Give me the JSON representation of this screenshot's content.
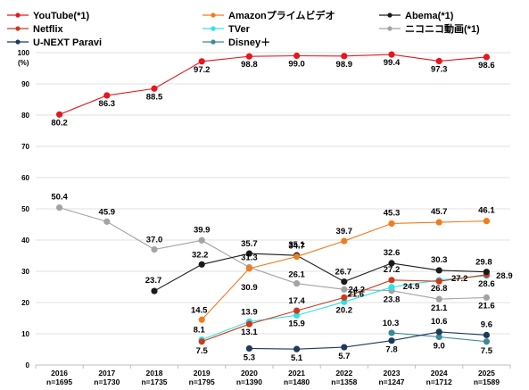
{
  "chart_data": {
    "type": "line",
    "title": "",
    "xlabel": "",
    "ylabel": "(%)",
    "ylim": [
      0,
      100
    ],
    "yticks": [
      0,
      10,
      20,
      30,
      40,
      50,
      60,
      70,
      80,
      90,
      100
    ],
    "grid": "horizontal",
    "legend_position": "top",
    "categories": [
      "2016",
      "2017",
      "2018",
      "2019",
      "2020",
      "2021",
      "2022",
      "2023",
      "2024",
      "2025"
    ],
    "sample_sizes": [
      "n=1695",
      "n=1730",
      "n=1735",
      "n=1795",
      "n=1390",
      "n=1480",
      "n=1358",
      "n=1247",
      "n=1712",
      "n=1589"
    ],
    "series": [
      {
        "name": "YouTube(*1)",
        "color": "#e8161d",
        "values": [
          80.2,
          86.3,
          88.5,
          97.2,
          98.8,
          99.0,
          98.9,
          99.4,
          97.3,
          98.6
        ]
      },
      {
        "name": "Amazonプライムビデオ",
        "color": "#f07c1e",
        "values": [
          null,
          null,
          null,
          14.5,
          30.9,
          34.7,
          39.7,
          45.3,
          45.7,
          46.1
        ]
      },
      {
        "name": "Abema(*1)",
        "color": "#1a1a1a",
        "values": [
          null,
          null,
          23.7,
          32.2,
          35.7,
          35.1,
          26.7,
          32.6,
          30.3,
          29.8
        ]
      },
      {
        "name": "Netflix",
        "color": "#cc3a1e",
        "values": [
          null,
          null,
          null,
          7.5,
          13.1,
          17.4,
          21.6,
          27.2,
          26.8,
          28.9
        ]
      },
      {
        "name": "TVer",
        "color": "#2fe2e6",
        "values": [
          null,
          null,
          null,
          8.1,
          13.9,
          15.9,
          20.2,
          24.9,
          27.2,
          28.6
        ]
      },
      {
        "name": "ニコニコ動画(*1)",
        "color": "#a3a3a3",
        "values": [
          50.4,
          45.9,
          37.0,
          39.9,
          31.3,
          26.1,
          24.2,
          23.8,
          21.1,
          21.6
        ]
      },
      {
        "name": "U-NEXT Paravi",
        "color": "#1d3a5c",
        "values": [
          null,
          null,
          null,
          null,
          5.3,
          5.1,
          5.7,
          7.8,
          10.6,
          9.6
        ]
      },
      {
        "name": "Disney＋",
        "color": "#3a8a99",
        "values": [
          null,
          null,
          null,
          null,
          null,
          null,
          null,
          10.3,
          9.0,
          7.5
        ]
      }
    ]
  }
}
